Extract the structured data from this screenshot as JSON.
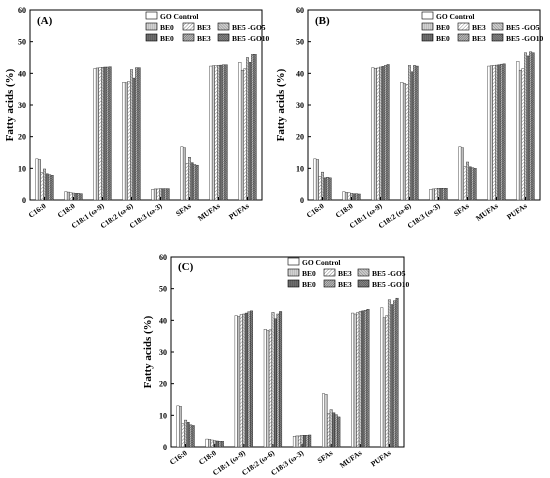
{
  "colors": {
    "go_control": "#ffffff",
    "be0_light": "#d2d2d2",
    "be0_dark": "#6e6e6e",
    "be3": "#bdbdbd",
    "be5_go5": "#cfcfcf",
    "be5_go10": "#8a8a8a",
    "axis": "#000000"
  },
  "shared": {
    "ylabel": "Fatty acids (%)",
    "categories": [
      "C16:0",
      "C18:0",
      "C18:1 (ω-9)",
      "C18:2 (ω-6)",
      "C18:3 (ω-3)",
      "SFAs",
      "MUFAs",
      "PUFAs"
    ],
    "series_names": [
      "GO Control",
      "BE0",
      "BE3",
      "BE5 -GO5",
      "BE0",
      "BE3",
      "BE5 -GO10"
    ]
  },
  "chart_data": [
    {
      "type": "bar",
      "panel_label": "(A)",
      "ylabel": "Fatty acids (%)",
      "ylim": [
        0,
        60
      ],
      "yticks": [
        0,
        10,
        20,
        30,
        40,
        50,
        60
      ],
      "categories": [
        "C16:0",
        "C18:0",
        "C18:1 (ω-9)",
        "C18:2 (ω-6)",
        "C18:3 (ω-3)",
        "SFAs",
        "MUFAs",
        "PUFAs"
      ],
      "legend": "top-right",
      "series": [
        {
          "name": "GO Control",
          "values": [
            13.0,
            2.6,
            41.5,
            37.2,
            3.4,
            16.8,
            42.3,
            43.5
          ]
        },
        {
          "name": "BE0",
          "values": [
            12.8,
            2.5,
            41.7,
            37.0,
            3.5,
            16.5,
            42.4,
            41.0
          ]
        },
        {
          "name": "BE3",
          "values": [
            8.7,
            2.3,
            41.8,
            37.5,
            3.5,
            11.5,
            42.5,
            41.5
          ]
        },
        {
          "name": "BE5 -GO5",
          "values": [
            9.8,
            2.2,
            41.9,
            41.2,
            3.6,
            13.5,
            42.5,
            45.0
          ]
        },
        {
          "name": "BE0",
          "values": [
            8.3,
            2.1,
            42.0,
            38.5,
            3.6,
            11.8,
            42.6,
            43.5
          ]
        },
        {
          "name": "BE3",
          "values": [
            8.0,
            2.1,
            42.0,
            41.8,
            3.6,
            11.2,
            42.7,
            46.0
          ]
        },
        {
          "name": "BE5 -GO10",
          "values": [
            7.8,
            2.0,
            42.1,
            41.8,
            3.6,
            11.0,
            42.7,
            46.0
          ]
        }
      ]
    },
    {
      "type": "bar",
      "panel_label": "(B)",
      "ylabel": "Fatty acids (%)",
      "ylim": [
        0,
        60
      ],
      "yticks": [
        0,
        10,
        20,
        30,
        40,
        50,
        60
      ],
      "categories": [
        "C16:0",
        "C18:0",
        "C18:1 (ω-9)",
        "C18:2 (ω-6)",
        "C18:3 (ω-3)",
        "SFAs",
        "MUFAs",
        "PUFAs"
      ],
      "legend": "top-right",
      "series": [
        {
          "name": "GO Control",
          "values": [
            13.0,
            2.6,
            41.8,
            37.2,
            3.4,
            16.8,
            42.3,
            43.8
          ]
        },
        {
          "name": "BE0",
          "values": [
            12.8,
            2.4,
            41.6,
            36.8,
            3.5,
            16.5,
            42.4,
            41.0
          ]
        },
        {
          "name": "BE3",
          "values": [
            7.5,
            2.3,
            41.7,
            36.5,
            3.6,
            10.5,
            42.5,
            41.5
          ]
        },
        {
          "name": "BE5 -GO5",
          "values": [
            8.8,
            2.1,
            42.0,
            42.5,
            3.7,
            12.0,
            42.6,
            46.5
          ]
        },
        {
          "name": "BE0",
          "values": [
            7.0,
            2.0,
            42.2,
            40.5,
            3.7,
            10.5,
            42.7,
            45.5
          ]
        },
        {
          "name": "BE3",
          "values": [
            7.2,
            2.0,
            42.5,
            42.5,
            3.7,
            10.2,
            42.9,
            46.8
          ]
        },
        {
          "name": "BE5 -GO10",
          "values": [
            7.0,
            1.9,
            42.8,
            42.3,
            3.7,
            10.0,
            43.0,
            46.5
          ]
        }
      ]
    },
    {
      "type": "bar",
      "panel_label": "(C)",
      "ylabel": "Fatty acids (%)",
      "ylim": [
        0,
        60
      ],
      "yticks": [
        0,
        10,
        20,
        30,
        40,
        50,
        60
      ],
      "categories": [
        "C16:0",
        "C18:0",
        "C18:1 (ω-9)",
        "C18:2 (ω-6)",
        "C18:3 (ω-3)",
        "SFAs",
        "MUFAs",
        "PUFAs"
      ],
      "legend": "top-right",
      "series": [
        {
          "name": "GO Control",
          "values": [
            13.0,
            2.5,
            41.5,
            37.2,
            3.4,
            16.8,
            42.3,
            44.0
          ]
        },
        {
          "name": "BE0",
          "values": [
            12.8,
            2.4,
            41.2,
            36.8,
            3.5,
            16.6,
            42.0,
            40.8
          ]
        },
        {
          "name": "BE3",
          "values": [
            7.5,
            2.2,
            41.8,
            37.0,
            3.5,
            10.5,
            42.5,
            41.5
          ]
        },
        {
          "name": "BE5 -GO5",
          "values": [
            8.5,
            2.0,
            42.0,
            42.5,
            3.7,
            11.8,
            42.8,
            46.5
          ]
        },
        {
          "name": "BE0",
          "values": [
            7.8,
            1.9,
            42.3,
            40.5,
            3.7,
            10.8,
            43.0,
            45.0
          ]
        },
        {
          "name": "BE3",
          "values": [
            7.0,
            1.8,
            42.7,
            42.0,
            3.7,
            10.2,
            43.2,
            46.2
          ]
        },
        {
          "name": "BE5 -GO10",
          "values": [
            6.8,
            1.8,
            43.0,
            42.8,
            3.8,
            9.5,
            43.5,
            47.0
          ]
        }
      ]
    }
  ]
}
